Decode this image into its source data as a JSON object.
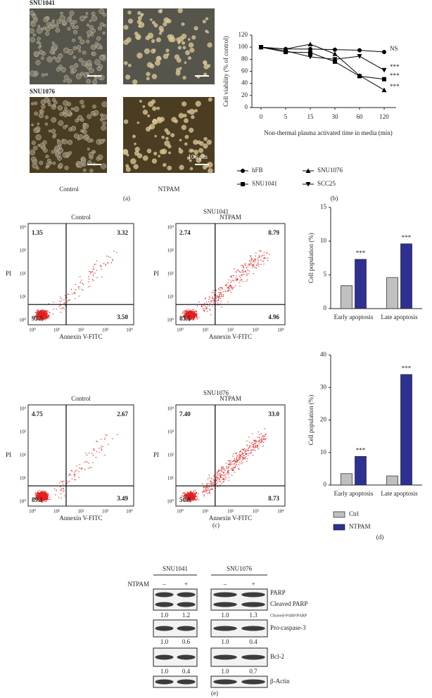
{
  "panels": [
    "(a)",
    "(b)",
    "(c)",
    "(d)",
    "(e)"
  ],
  "micrographs": {
    "cell_lines": [
      "SNU1041",
      "SNU1076"
    ],
    "conditions": [
      "Control",
      "NTPAM"
    ],
    "scale_bar": "100 μm"
  },
  "chart_data": [
    {
      "type": "line",
      "ylabel": "Cell viability (% of control)",
      "xlabel": "Non-thermal plasma activated time in media (min)",
      "categories": [
        "0",
        "5",
        "15",
        "30",
        "60",
        "120"
      ],
      "ylim": [
        0,
        120
      ],
      "yticks": [
        0,
        20,
        40,
        60,
        80,
        100,
        120
      ],
      "series": [
        {
          "name": "hFB",
          "color": "#000000",
          "marker": "circle",
          "values": [
            100,
            97,
            97,
            96,
            95,
            92
          ]
        },
        {
          "name": "SNU1041",
          "color": "#000000",
          "marker": "square",
          "values": [
            100,
            92,
            91,
            76,
            52,
            47
          ]
        },
        {
          "name": "SNU1076",
          "color": "#000000",
          "marker": "triangle-up",
          "values": [
            100,
            97,
            105,
            89,
            53,
            29
          ]
        },
        {
          "name": "SCC25",
          "color": "#000000",
          "marker": "triangle-down",
          "values": [
            100,
            94,
            84,
            80,
            85,
            62
          ]
        }
      ],
      "annotations": [
        "NS",
        "***",
        "***",
        "***"
      ]
    },
    {
      "type": "bar",
      "ylabel": "Cell population (%)",
      "categories": [
        "Early apoptosis",
        "Late apoptosis"
      ],
      "ylim": [
        0,
        15
      ],
      "yticks": [
        0,
        5,
        10,
        15
      ],
      "annotation": "***",
      "legend": false,
      "series": [
        {
          "name": "Ctrl",
          "color": "#c0c0c0",
          "values": [
            3.4,
            4.6
          ]
        },
        {
          "name": "NTPAM",
          "color": "#2e3192",
          "values": [
            7.3,
            9.6
          ]
        }
      ]
    },
    {
      "type": "bar",
      "ylabel": "Cell population (%)",
      "categories": [
        "Early apoptosis",
        "Late apoptosis"
      ],
      "ylim": [
        0,
        40
      ],
      "yticks": [
        0,
        10,
        20,
        30,
        40
      ],
      "annotation": "***",
      "legend": true,
      "series": [
        {
          "name": "Ctrl",
          "color": "#c0c0c0",
          "values": [
            3.5,
            2.8
          ]
        },
        {
          "name": "NTPAM",
          "color": "#2e3192",
          "values": [
            8.8,
            34
          ]
        }
      ]
    }
  ],
  "flow": {
    "xlabel": "Annexin V-FITC",
    "ylabel": "PI",
    "ticks": [
      "10⁰",
      "10¹",
      "10²",
      "10³",
      "10⁴"
    ],
    "rows": [
      {
        "title": "SNU1041",
        "plots": [
          {
            "label": "Control",
            "quadrants": [
              "1.35",
              "3.32",
              "93.5",
              "3.50"
            ]
          },
          {
            "label": "NTPAM",
            "quadrants": [
              "2.74",
              "8.79",
              "83.5",
              "4.96"
            ]
          }
        ]
      },
      {
        "title": "SNU1076",
        "plots": [
          {
            "label": "Control",
            "quadrants": [
              "4.75",
              "2.67",
              "89.1",
              "3.49"
            ]
          },
          {
            "label": "NTPAM",
            "quadrants": [
              "7.40",
              "33.0",
              "50.8",
              "8.73"
            ]
          }
        ]
      }
    ]
  },
  "western": {
    "groups": [
      "SNU1041",
      "SNU1076"
    ],
    "treatment": "NTPAM",
    "lanes": [
      "–",
      "+"
    ],
    "blots": [
      {
        "labels": [
          "PARP",
          "Cleaved PARP"
        ],
        "ratio_label": "Cleaved-PARP/PARP",
        "values": [
          [
            "1.0",
            "1.2"
          ],
          [
            "1.0",
            "1.3"
          ]
        ]
      },
      {
        "labels": [
          "Pro-caspase-3"
        ],
        "values": [
          [
            "1.0",
            "0.6"
          ],
          [
            "1.0",
            "0.4"
          ]
        ]
      },
      {
        "labels": [
          "Bcl-2"
        ],
        "values": [
          [
            "1.0",
            "0.4"
          ],
          [
            "1.0",
            "0.7"
          ]
        ]
      },
      {
        "labels": [
          "β-Actin"
        ]
      }
    ]
  }
}
